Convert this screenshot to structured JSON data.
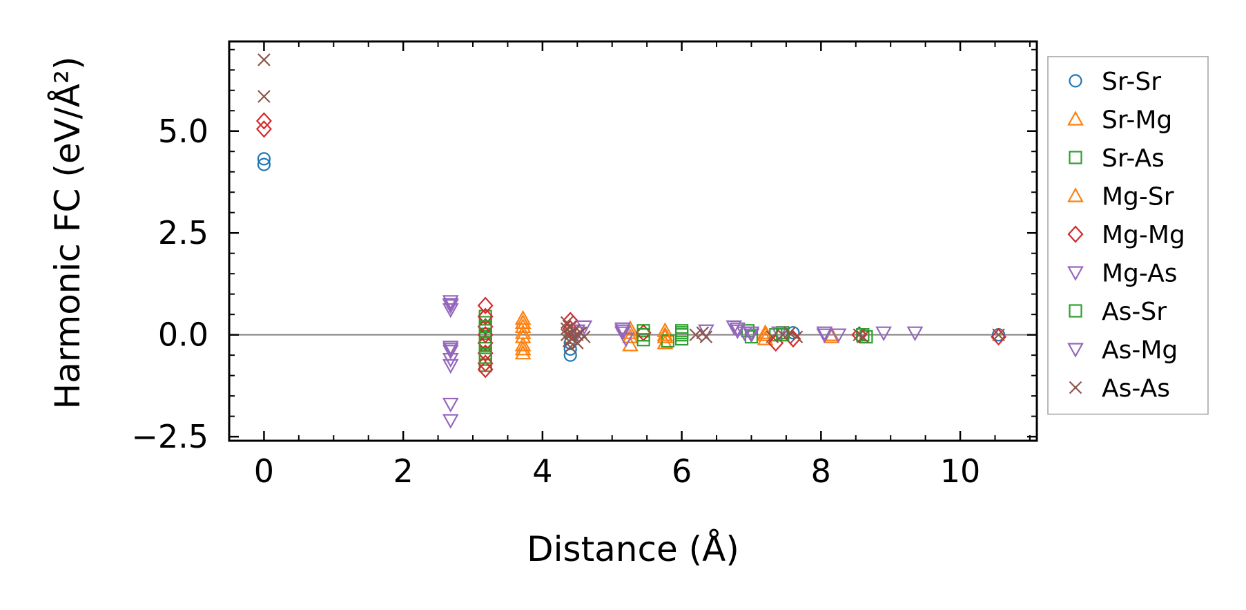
{
  "chart_data": {
    "type": "scatter",
    "title": "",
    "xlabel": "Distance (Å)",
    "ylabel": "Harmonic FC (eV/Å²)",
    "xlim": [
      -0.5,
      11.1
    ],
    "ylim": [
      -2.6,
      7.2
    ],
    "x_ticks": [
      0,
      2,
      4,
      6,
      8,
      10
    ],
    "x_tick_labels": [
      "0",
      "2",
      "4",
      "6",
      "8",
      "10"
    ],
    "y_ticks": [
      -2.5,
      0.0,
      2.5,
      5.0
    ],
    "y_tick_labels": [
      "−2.5",
      "0.0",
      "2.5",
      "5.0"
    ],
    "zero_line": 0,
    "grid": false,
    "legend_position": "outside-right",
    "series": [
      {
        "name": "Sr-Sr",
        "marker": "circle",
        "color": "#1f77b4",
        "x": [
          0,
          0,
          4.4,
          4.4,
          4.4,
          7.6,
          10.55
        ],
        "y": [
          4.32,
          4.18,
          -0.5,
          -0.35,
          -0.2,
          0.05,
          0.0
        ]
      },
      {
        "name": "Sr-Mg",
        "marker": "triangle-up",
        "color": "#ff7f0e",
        "x": [
          3.72,
          3.72,
          3.72,
          3.72,
          3.72,
          5.26,
          5.26,
          5.26,
          5.76,
          5.76,
          5.76,
          7.2,
          7.2,
          8.15
        ],
        "y": [
          0.4,
          0.2,
          -0.05,
          -0.25,
          -0.45,
          0.15,
          -0.05,
          -0.25,
          0.1,
          -0.05,
          -0.2,
          0.05,
          -0.1,
          -0.05
        ]
      },
      {
        "name": "Sr-As",
        "marker": "square",
        "color": "#2ca02c",
        "x": [
          3.18,
          3.18,
          3.18,
          3.18,
          3.18,
          3.18,
          3.18,
          3.18,
          5.45,
          5.45,
          5.45,
          5.8,
          6.0,
          6.0,
          6.0,
          6.95,
          7.0,
          7.35,
          7.45,
          8.6,
          8.65
        ],
        "y": [
          0.45,
          0.3,
          0.1,
          -0.05,
          -0.25,
          -0.45,
          -0.6,
          -0.75,
          0.1,
          0.0,
          -0.12,
          -0.15,
          0.1,
          0.0,
          -0.1,
          0.1,
          -0.05,
          0.0,
          0.05,
          0.0,
          -0.05
        ]
      },
      {
        "name": "Mg-Sr",
        "marker": "triangle-up",
        "color": "#ff7f0e",
        "x": [
          3.72,
          3.72,
          3.72,
          5.26,
          5.76,
          7.2,
          8.15
        ],
        "y": [
          0.3,
          0.05,
          -0.35,
          0.05,
          0.0,
          0.0,
          0.0
        ]
      },
      {
        "name": "Mg-Mg",
        "marker": "diamond",
        "color": "#d62728",
        "x": [
          0,
          0,
          3.18,
          3.18,
          3.18,
          3.18,
          3.18,
          3.18,
          3.18,
          3.18,
          4.4,
          4.4,
          5.45,
          7.35,
          7.6,
          8.55,
          10.55
        ],
        "y": [
          5.25,
          5.05,
          0.72,
          0.45,
          0.2,
          0.0,
          -0.2,
          -0.45,
          -0.7,
          -0.85,
          0.35,
          0.15,
          0.05,
          -0.2,
          -0.1,
          0.0,
          -0.05
        ]
      },
      {
        "name": "Mg-As",
        "marker": "triangle-down",
        "color": "#9467bd",
        "x": [
          2.68,
          2.68,
          2.68,
          2.68,
          2.68,
          2.68,
          2.68,
          2.68,
          2.68,
          4.5,
          4.6,
          5.15,
          5.15,
          5.2,
          6.35,
          6.75,
          6.8,
          6.9,
          7.0,
          7.4,
          8.05,
          8.25,
          8.9,
          9.35
        ],
        "y": [
          0.82,
          0.72,
          0.62,
          -0.3,
          -0.4,
          -0.6,
          -0.75,
          -1.7,
          -2.1,
          0.1,
          0.2,
          0.15,
          0.05,
          -0.1,
          0.1,
          0.2,
          0.1,
          0.05,
          0.05,
          0.05,
          0.05,
          0.0,
          0.05,
          0.05
        ]
      },
      {
        "name": "As-Sr",
        "marker": "square",
        "color": "#2ca02c",
        "x": [
          3.18,
          3.18,
          3.18,
          5.45,
          6.0,
          7.45,
          8.6
        ],
        "y": [
          0.2,
          -0.2,
          -0.55,
          0.0,
          0.05,
          0.0,
          0.0
        ]
      },
      {
        "name": "As-Mg",
        "marker": "triangle-down",
        "color": "#9467bd",
        "x": [
          2.68,
          2.68,
          4.5,
          5.15,
          6.8,
          7.0,
          8.05
        ],
        "y": [
          0.75,
          -0.35,
          0.05,
          0.1,
          0.15,
          0.0,
          0.0
        ]
      },
      {
        "name": "As-As",
        "marker": "x",
        "color": "#8c564b",
        "x": [
          0,
          0,
          4.35,
          4.35,
          4.35,
          4.38,
          4.4,
          4.4,
          4.4,
          4.42,
          4.45,
          4.45,
          4.5,
          4.5,
          4.55,
          4.6,
          6.2,
          6.3,
          6.35,
          7.3,
          7.45,
          7.55,
          7.65,
          8.55,
          8.6,
          10.55
        ],
        "y": [
          6.75,
          5.85,
          0.3,
          0.15,
          0.0,
          -0.15,
          -0.3,
          0.2,
          0.05,
          -0.1,
          0.1,
          -0.05,
          0.0,
          -0.2,
          0.05,
          -0.05,
          0.0,
          0.05,
          -0.05,
          -0.05,
          0.0,
          0.05,
          -0.05,
          0.0,
          -0.05,
          0.0
        ]
      }
    ]
  }
}
